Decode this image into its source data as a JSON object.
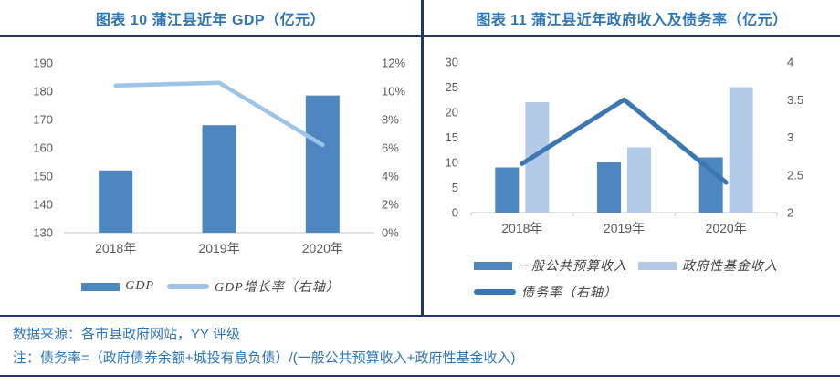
{
  "colors": {
    "title_blue": "#2E75B6",
    "rule_navy": "#1F3864",
    "axis_text": "#595959",
    "axis_line": "#D9D9D9",
    "dark_bar": "#4E86C0",
    "light_bar": "#B3C9E8",
    "growth_line": "#9DC3E6",
    "debt_line": "#3D77B3"
  },
  "footer": {
    "source": "数据来源：各市县政府网站，YY 评级",
    "note": "注：债务率=（政府债券余额+城投有息负债）/(一般公共预算收入+政府性基金收入)"
  },
  "chart_data": [
    {
      "type": "bar",
      "title": "图表 10 蒲江县近年 GDP（亿元）",
      "categories": [
        "2018年",
        "2019年",
        "2020年"
      ],
      "bar_series": [
        {
          "name": "GDP",
          "color": "#4E86C0",
          "axis": "left",
          "values": [
            152,
            168,
            178.5
          ]
        }
      ],
      "line_series": [
        {
          "name": "GDP增长率（右轴）",
          "color": "#9DC3E6",
          "axis": "right",
          "values": [
            10.4,
            10.6,
            6.2
          ]
        }
      ],
      "left_axis": {
        "min": 130,
        "max": 190,
        "tick_values": [
          130,
          140,
          150,
          160,
          170,
          180,
          190
        ],
        "tick_labels": [
          "130",
          "140",
          "150",
          "160",
          "170",
          "180",
          "190"
        ]
      },
      "right_axis": {
        "min": 0,
        "max": 12,
        "tick_values": [
          0,
          2,
          4,
          6,
          8,
          10,
          12
        ],
        "tick_labels": [
          "0%",
          "2%",
          "4%",
          "6%",
          "8%",
          "10%",
          "12%"
        ]
      },
      "grid": false,
      "legend_position": "bottom"
    },
    {
      "type": "bar",
      "title": "图表 11 蒲江县近年政府收入及债务率（亿元）",
      "categories": [
        "2018年",
        "2019年",
        "2020年"
      ],
      "bar_series": [
        {
          "name": "一般公共预算收入",
          "color": "#4E86C0",
          "axis": "left",
          "values": [
            9,
            10,
            11
          ]
        },
        {
          "name": "政府性基金收入",
          "color": "#B3C9E8",
          "axis": "left",
          "values": [
            22,
            13,
            25
          ]
        }
      ],
      "line_series": [
        {
          "name": "债务率（右轴）",
          "color": "#3D77B3",
          "axis": "right",
          "values": [
            2.65,
            3.5,
            2.4
          ]
        }
      ],
      "left_axis": {
        "min": 0,
        "max": 30,
        "tick_values": [
          0,
          5,
          10,
          15,
          20,
          25,
          30
        ],
        "tick_labels": [
          "0",
          "5",
          "10",
          "15",
          "20",
          "25",
          "30"
        ]
      },
      "right_axis": {
        "min": 2,
        "max": 4,
        "tick_values": [
          2,
          2.5,
          3,
          3.5,
          4
        ],
        "tick_labels": [
          "2",
          "2.5",
          "3",
          "3.5",
          "4"
        ]
      },
      "grid": false,
      "legend_position": "bottom"
    }
  ]
}
